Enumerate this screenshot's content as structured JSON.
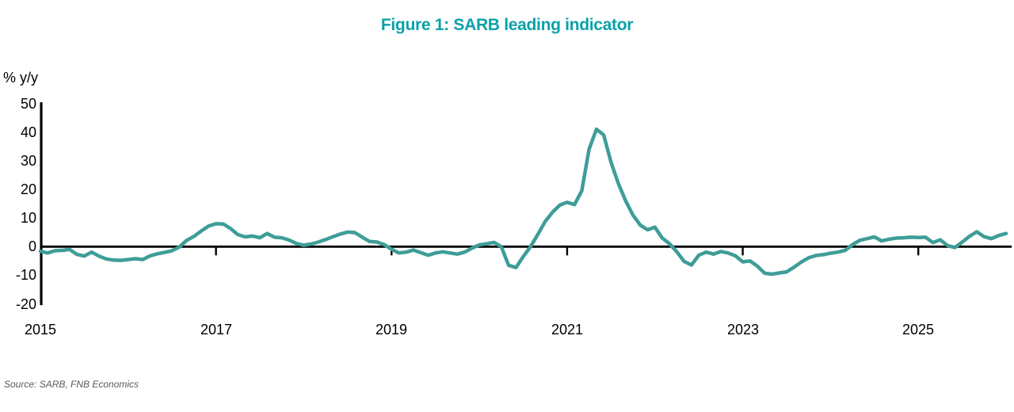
{
  "title": "Figure 1: SARB leading indicator",
  "y_axis_unit_label": "% y/y",
  "source": "Source: SARB, FNB Economics",
  "colors": {
    "title_teal": "#0ba1a9",
    "line_teal": "#3e9d98",
    "axis_black": "#000000",
    "source_gray": "#58595b"
  },
  "chart_data": {
    "type": "line",
    "title": "Figure 1: SARB leading indicator",
    "ylabel": "% y/y",
    "xlabel": "",
    "grid": false,
    "legend": "none",
    "ylim": [
      -20,
      50
    ],
    "xlim": [
      2015,
      2026.05
    ],
    "y_ticks": [
      50,
      40,
      30,
      20,
      10,
      0,
      -10,
      -20
    ],
    "x_tick_years": [
      2015,
      2017,
      2019,
      2021,
      2023,
      2025
    ],
    "x_tick_labels": [
      "2015",
      "2017",
      "2019",
      "2021",
      "2023",
      "2025"
    ],
    "series": [
      {
        "name": "SARB leading indicator (% y/y)",
        "frequency": "monthly",
        "start": "2015-01",
        "values": [
          -1.6,
          -2.2,
          -1.4,
          -1.3,
          -1.0,
          -2.7,
          -3.3,
          -1.9,
          -3.3,
          -4.3,
          -4.7,
          -4.8,
          -4.5,
          -4.2,
          -4.5,
          -3.2,
          -2.5,
          -2.0,
          -1.4,
          -0.1,
          2.2,
          3.6,
          5.5,
          7.2,
          8.0,
          7.9,
          6.3,
          4.2,
          3.4,
          3.7,
          3.1,
          4.6,
          3.3,
          3.1,
          2.3,
          1.1,
          0.5,
          0.9,
          1.6,
          2.5,
          3.5,
          4.4,
          5.1,
          4.9,
          3.3,
          1.8,
          1.6,
          0.7,
          -0.9,
          -2.2,
          -1.9,
          -1.2,
          -2.1,
          -3.0,
          -2.2,
          -1.8,
          -2.2,
          -2.6,
          -1.9,
          -0.5,
          0.6,
          1.0,
          1.5,
          0.0,
          -6.5,
          -7.3,
          -3.5,
          0.0,
          4.3,
          8.8,
          12.0,
          14.5,
          15.5,
          14.7,
          19.5,
          34.0,
          41.0,
          39.0,
          29.5,
          22.0,
          16.0,
          11.0,
          7.5,
          5.9,
          6.8,
          3.0,
          1.0,
          -1.8,
          -5.2,
          -6.4,
          -3.0,
          -1.9,
          -2.6,
          -1.7,
          -2.2,
          -3.2,
          -5.3,
          -5.0,
          -6.8,
          -9.3,
          -9.6,
          -9.2,
          -8.8,
          -7.2,
          -5.4,
          -3.9,
          -3.1,
          -2.8,
          -2.3,
          -1.9,
          -1.3,
          0.7,
          2.2,
          2.8,
          3.4,
          2.0,
          2.6,
          3.0,
          3.1,
          3.3,
          3.2,
          3.3,
          1.4,
          2.4,
          0.4,
          -0.3,
          1.6,
          3.6,
          5.2,
          3.5,
          2.8,
          3.9,
          4.6
        ]
      }
    ]
  }
}
